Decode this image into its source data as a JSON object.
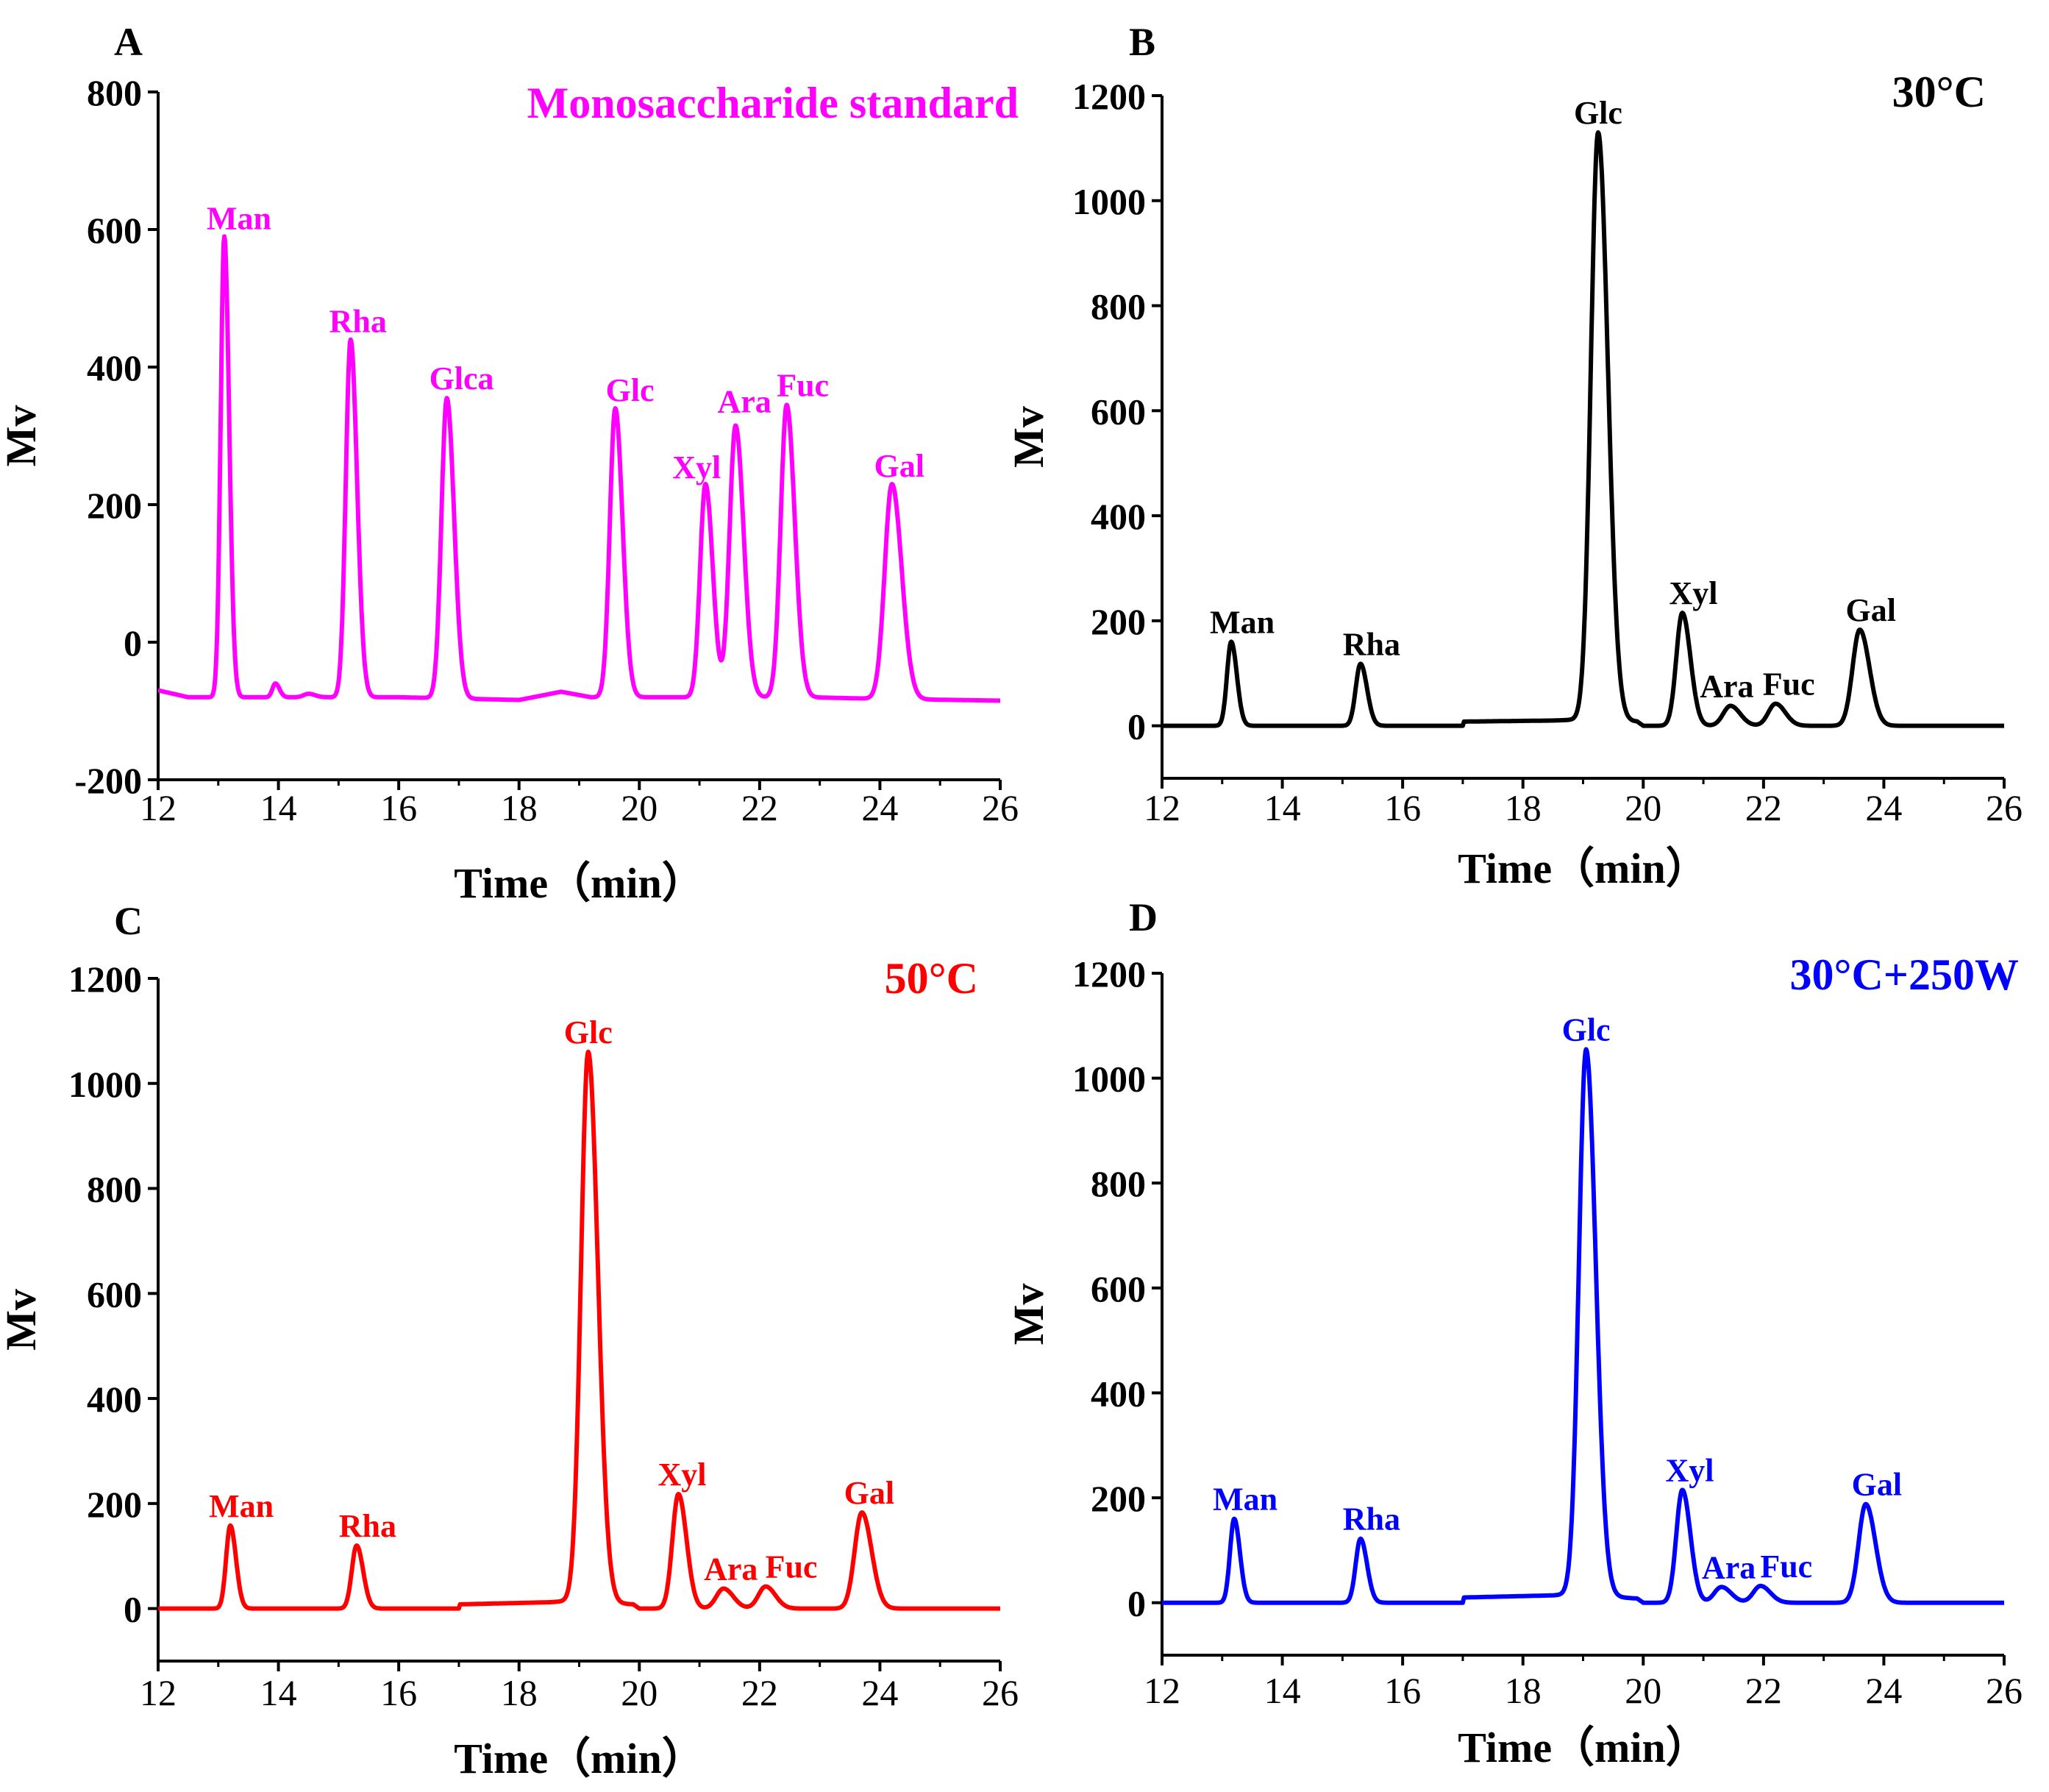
{
  "chart_data": [
    {
      "panel_label": "A",
      "type": "line",
      "title": "Monosaccharide standard",
      "color": "#FF00FF",
      "xlabel": "Time（min）",
      "ylabel": "Mv",
      "xlim": [
        12,
        26
      ],
      "ylim": [
        -200,
        800
      ],
      "xticks": [
        "12",
        "14",
        "16",
        "18",
        "20",
        "22",
        "24",
        "26"
      ],
      "yticks": [
        "-200",
        "0",
        "200",
        "400",
        "600",
        "800"
      ],
      "baseline": [
        [
          12,
          -70
        ],
        [
          12.5,
          -80
        ],
        [
          16,
          -80
        ],
        [
          18,
          -84
        ],
        [
          18.7,
          -72
        ],
        [
          19.2,
          -80
        ],
        [
          22.8,
          -80
        ],
        [
          23.8,
          -82
        ],
        [
          26,
          -85
        ]
      ],
      "peaks": [
        {
          "name": "Man",
          "x": 13.1,
          "y": 590,
          "w": 0.06
        },
        {
          "name": "",
          "x": 13.95,
          "y": -60,
          "w": 0.05
        },
        {
          "name": "",
          "x": 14.5,
          "y": -75,
          "w": 0.08
        },
        {
          "name": "Rha",
          "x": 15.2,
          "y": 440,
          "w": 0.08
        },
        {
          "name": "Glca",
          "x": 16.8,
          "y": 355,
          "w": 0.09
        },
        {
          "name": "Glc",
          "x": 19.6,
          "y": 340,
          "w": 0.09
        },
        {
          "name": "Xyl",
          "x": 21.1,
          "y": 230,
          "w": 0.09
        },
        {
          "name": "Ara",
          "x": 21.6,
          "y": 315,
          "w": 0.1
        },
        {
          "name": "Fuc",
          "x": 22.45,
          "y": 345,
          "w": 0.1
        },
        {
          "name": "Gal",
          "x": 24.2,
          "y": 230,
          "w": 0.12
        }
      ]
    },
    {
      "panel_label": "B",
      "type": "line",
      "title": "30°C",
      "color": "#000000",
      "xlabel": "Time（min）",
      "ylabel": "Mv",
      "xlim": [
        12,
        26
      ],
      "ylim": [
        -100,
        1200
      ],
      "xticks": [
        "12",
        "14",
        "16",
        "18",
        "20",
        "22",
        "24",
        "26"
      ],
      "yticks": [
        "0",
        "200",
        "400",
        "600",
        "800",
        "1000",
        "1200"
      ],
      "baseline": [
        [
          12,
          0
        ],
        [
          17,
          0
        ],
        [
          17.02,
          8
        ],
        [
          18.5,
          10
        ],
        [
          19.0,
          12
        ],
        [
          19.9,
          8
        ],
        [
          20.0,
          0
        ],
        [
          26,
          0
        ]
      ],
      "peaks": [
        {
          "name": "Man",
          "x": 13.15,
          "y": 160,
          "w": 0.07
        },
        {
          "name": "Rha",
          "x": 15.3,
          "y": 118,
          "w": 0.08
        },
        {
          "name": "Glc",
          "x": 19.25,
          "y": 1130,
          "w": 0.12
        },
        {
          "name": "Xyl",
          "x": 20.65,
          "y": 215,
          "w": 0.1
        },
        {
          "name": "Ara",
          "x": 21.45,
          "y": 38,
          "w": 0.12
        },
        {
          "name": "Fuc",
          "x": 22.2,
          "y": 42,
          "w": 0.12
        },
        {
          "name": "Gal",
          "x": 23.6,
          "y": 183,
          "w": 0.12
        }
      ]
    },
    {
      "panel_label": "C",
      "type": "line",
      "title": "50°C",
      "color": "#FF0000",
      "xlabel": "Time（min）",
      "ylabel": "Mv",
      "xlim": [
        12,
        26
      ],
      "ylim": [
        -100,
        1200
      ],
      "xticks": [
        "12",
        "14",
        "16",
        "18",
        "20",
        "22",
        "24",
        "26"
      ],
      "yticks": [
        "0",
        "200",
        "400",
        "600",
        "800",
        "1000",
        "1200"
      ],
      "baseline": [
        [
          12,
          0
        ],
        [
          17,
          0
        ],
        [
          17.02,
          8
        ],
        [
          18.5,
          12
        ],
        [
          18.8,
          14
        ],
        [
          19.9,
          8
        ],
        [
          20.0,
          0
        ],
        [
          26,
          0
        ]
      ],
      "peaks": [
        {
          "name": "Man",
          "x": 13.2,
          "y": 158,
          "w": 0.07
        },
        {
          "name": "Rha",
          "x": 15.3,
          "y": 120,
          "w": 0.08
        },
        {
          "name": "Glc",
          "x": 19.15,
          "y": 1060,
          "w": 0.12
        },
        {
          "name": "Xyl",
          "x": 20.65,
          "y": 218,
          "w": 0.1
        },
        {
          "name": "Ara",
          "x": 21.4,
          "y": 38,
          "w": 0.12
        },
        {
          "name": "Fuc",
          "x": 22.1,
          "y": 42,
          "w": 0.12
        },
        {
          "name": "Gal",
          "x": 23.7,
          "y": 183,
          "w": 0.12
        }
      ]
    },
    {
      "panel_label": "D",
      "type": "line",
      "title": "30°C+250W",
      "color": "#0000FF",
      "xlabel": "Time（min）",
      "ylabel": "Mv",
      "xlim": [
        12,
        26
      ],
      "ylim": [
        -100,
        1200
      ],
      "xticks": [
        "12",
        "14",
        "16",
        "18",
        "20",
        "22",
        "24",
        "26"
      ],
      "yticks": [
        "0",
        "200",
        "400",
        "600",
        "800",
        "1000",
        "1200"
      ],
      "baseline": [
        [
          12,
          0
        ],
        [
          17,
          0
        ],
        [
          17.02,
          10
        ],
        [
          18.5,
          14
        ],
        [
          18.8,
          16
        ],
        [
          19.9,
          8
        ],
        [
          20.0,
          0
        ],
        [
          26,
          0
        ]
      ],
      "peaks": [
        {
          "name": "Man",
          "x": 13.2,
          "y": 160,
          "w": 0.07
        },
        {
          "name": "Rha",
          "x": 15.3,
          "y": 122,
          "w": 0.08
        },
        {
          "name": "Glc",
          "x": 19.05,
          "y": 1055,
          "w": 0.12
        },
        {
          "name": "Xyl",
          "x": 20.65,
          "y": 215,
          "w": 0.1
        },
        {
          "name": "Ara",
          "x": 21.3,
          "y": 30,
          "w": 0.12
        },
        {
          "name": "Fuc",
          "x": 21.95,
          "y": 32,
          "w": 0.12
        },
        {
          "name": "Gal",
          "x": 23.7,
          "y": 188,
          "w": 0.12
        }
      ]
    }
  ]
}
